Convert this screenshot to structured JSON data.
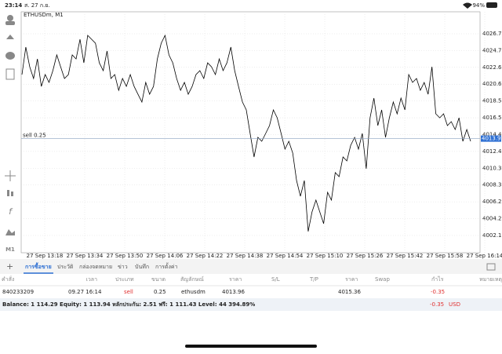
{
  "status_bar": {
    "time": "23:14",
    "date": "ส. 27 ก.ย.",
    "battery": "94%"
  },
  "timeframe": "M1",
  "chart_data": {
    "type": "line",
    "title": "ETHUSDm, M1",
    "color": "#000000",
    "values": [
      4021.77,
      4025.12,
      4022.72,
      4021.29,
      4023.68,
      4020.33,
      4021.77,
      4020.81,
      4022.25,
      4024.16,
      4022.72,
      4021.29,
      4021.77,
      4024.16,
      4023.68,
      4026.07,
      4023.2,
      4026.55,
      4026.07,
      4025.59,
      4023.2,
      4022.25,
      4024.64,
      4021.29,
      4021.77,
      4019.85,
      4021.29,
      4020.33,
      4021.77,
      4020.33,
      4019.37,
      4018.42,
      4020.81,
      4019.37,
      4020.33,
      4023.68,
      4025.59,
      4026.55,
      4024.16,
      4023.2,
      4021.29,
      4019.85,
      4020.81,
      4019.37,
      4020.33,
      4021.77,
      4022.25,
      4021.29,
      4023.2,
      4022.72,
      4021.77,
      4023.68,
      4022.25,
      4023.2,
      4025.12,
      4022.25,
      4020.33,
      4018.42,
      4017.46,
      4014.59,
      4011.72,
      4014.11,
      4013.63,
      4014.59,
      4015.55,
      4017.46,
      4016.5,
      4014.59,
      4012.68,
      4013.63,
      4012.2,
      4008.85,
      4006.93,
      4008.85,
      4002.63,
      4005.02,
      4006.46,
      4005.02,
      4003.59,
      4007.41,
      4006.46,
      4009.81,
      4009.33,
      4011.72,
      4011.24,
      4013.15,
      4014.11,
      4012.68,
      4014.59,
      4010.28,
      4016.5,
      4018.9,
      4015.55,
      4017.46,
      4014.11,
      4016.5,
      4018.42,
      4016.98,
      4018.9,
      4017.46,
      4021.77,
      4020.81,
      4021.29,
      4019.85,
      4020.81,
      4019.37,
      4022.72,
      4016.98,
      4016.5,
      4016.98,
      4015.55,
      4016.03,
      4015.07,
      4016.5,
      4013.63,
      4015.07,
      4013.63
    ],
    "ylim": [
      4000.04,
      4029.43
    ],
    "yticks": [
      {
        "value": 4002.15,
        "label": "4002.15"
      },
      {
        "value": 4004.2,
        "label": "4004.20"
      },
      {
        "value": 4006.25,
        "label": "4006.25"
      },
      {
        "value": 4008.3,
        "label": "4008.30"
      },
      {
        "value": 4010.35,
        "label": "4010.35"
      },
      {
        "value": 4012.4,
        "label": "4012.40"
      },
      {
        "value": 4014.45,
        "label": "4014.45"
      },
      {
        "value": 4016.5,
        "label": "4016.50"
      },
      {
        "value": 4018.55,
        "label": "4018.55"
      },
      {
        "value": 4020.6,
        "label": "4020.60"
      },
      {
        "value": 4022.65,
        "label": "4022.65"
      },
      {
        "value": 4024.7,
        "label": "4024.70"
      },
      {
        "value": 4026.75,
        "label": "4026.75"
      }
    ],
    "xticks": [
      "27 Sep 13:18",
      "27 Sep 13:34",
      "27 Sep 13:50",
      "27 Sep 14:06",
      "27 Sep 14:22",
      "27 Sep 14:38",
      "27 Sep 14:54",
      "27 Sep 15:10",
      "27 Sep 15:26",
      "27 Sep 15:42",
      "27 Sep 15:58",
      "27 Sep 16:14"
    ],
    "grid": true,
    "order_line": {
      "label": "sell 0.25",
      "value": 4013.96
    }
  },
  "tabs": [
    "การซื้อขาย",
    "ประวัติ",
    "กล่องจดหมาย",
    "ข่าว",
    "บันทึก",
    "การตั้งค่า"
  ],
  "table": {
    "headers": [
      "คำสั่ง",
      "เวลา",
      "ประเภท",
      "ขนาด",
      "สัญลักษณ์",
      "ราคา",
      "S/L",
      "T/P",
      "ราคา",
      "Swap",
      "กำไร",
      "หมายเหตุ"
    ],
    "row": {
      "order": "840233209",
      "time": "09.27 16:14",
      "type": "sell",
      "volume": "0.25",
      "symbol": "ethusdm",
      "price": "4013.96",
      "current_price": "4015.36",
      "profit": "-0.35"
    }
  },
  "summary": {
    "text": "Balance: 1 114.29 Equity: 1 113.94 หลักประกัน: 2.51 ฟรี: 1 111.43 Level: 44 394.89%",
    "profit": "-0.35",
    "currency": "USD"
  }
}
